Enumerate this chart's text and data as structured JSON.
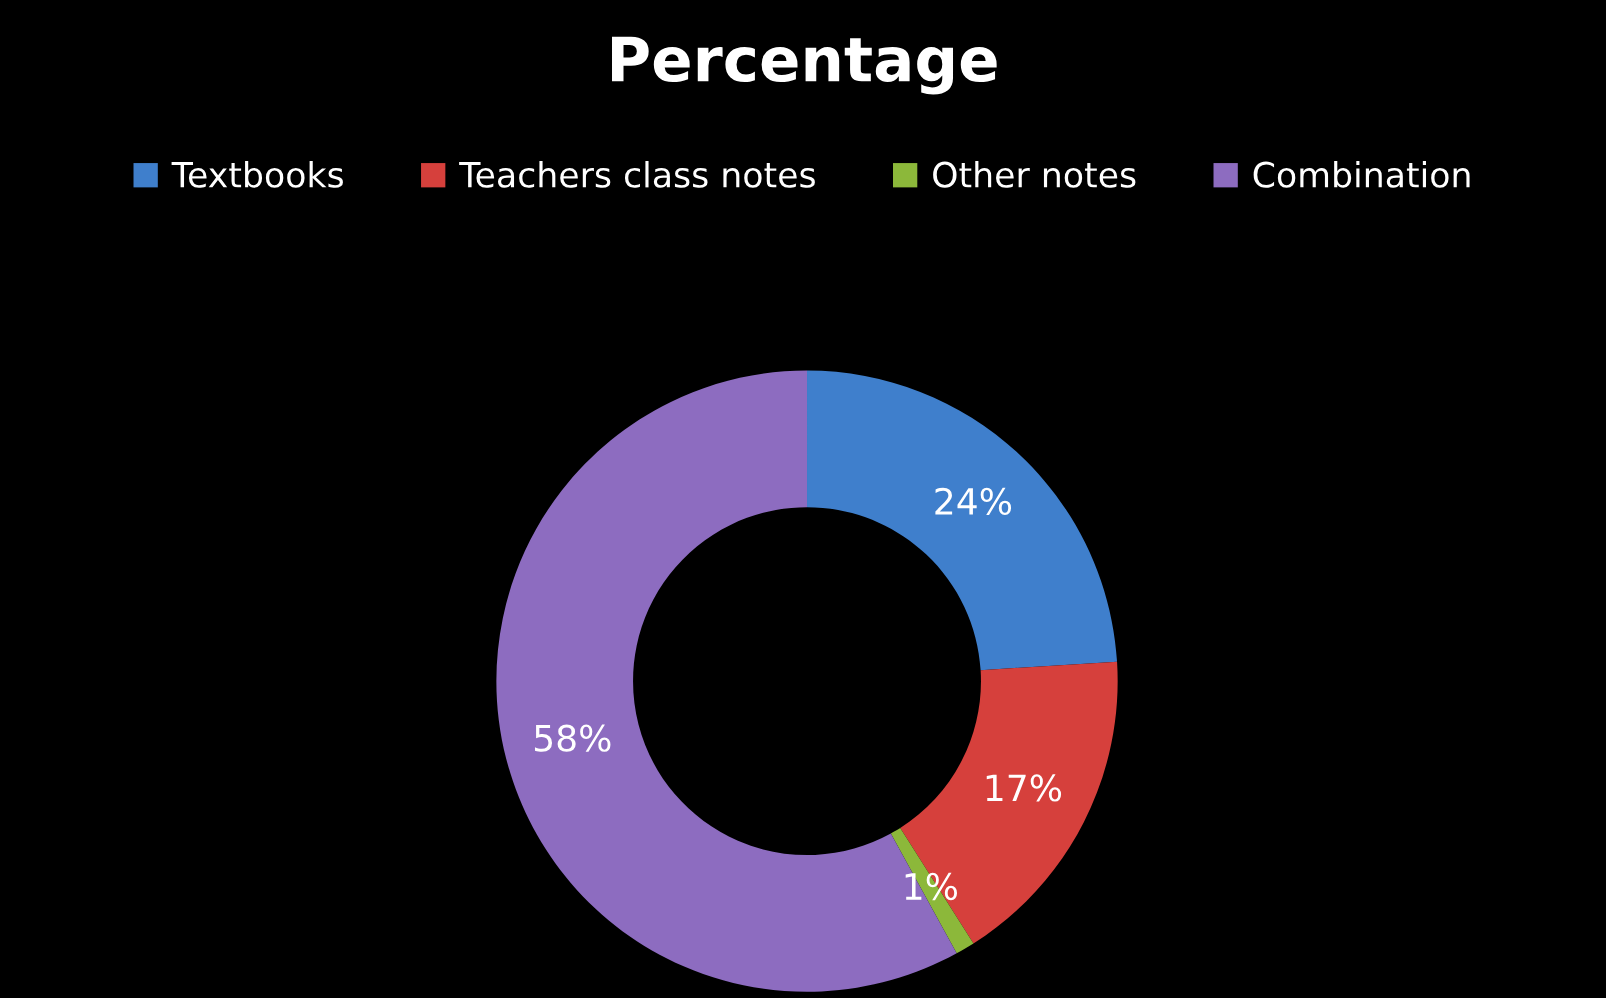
{
  "chart_data": {
    "type": "donut",
    "title": "Percentage",
    "categories": [
      "Textbooks",
      "Teachers class notes",
      "Other notes",
      "Combination"
    ],
    "values": [
      24,
      17,
      1,
      58
    ],
    "colors": [
      "#3f7fcc",
      "#d6403c",
      "#8cb83a",
      "#8d6cc0"
    ],
    "value_labels": [
      "24%",
      "17%",
      "1%",
      "58%"
    ],
    "legend": "top"
  }
}
